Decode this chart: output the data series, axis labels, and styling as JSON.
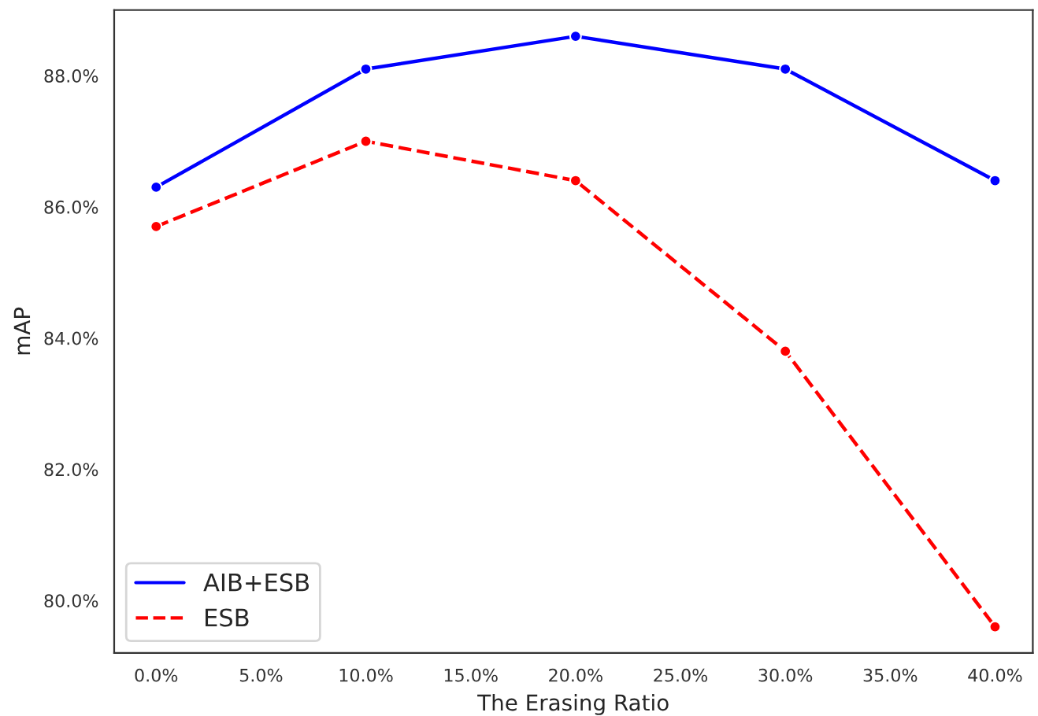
{
  "chart_data": {
    "type": "line",
    "xlabel": "The Erasing Ratio",
    "ylabel": "mAP",
    "x": [
      0,
      10,
      20,
      30,
      40
    ],
    "series": [
      {
        "name": "AIB+ESB",
        "color": "#0000ff",
        "values": [
          86.3,
          88.1,
          88.6,
          88.1,
          86.4
        ],
        "line_style": "solid"
      },
      {
        "name": "ESB",
        "color": "#ff0000",
        "values": [
          85.7,
          87.0,
          86.4,
          83.8,
          79.6
        ],
        "line_style": "dashed"
      }
    ],
    "xlim": [
      -2,
      41.8
    ],
    "ylim": [
      79.2,
      89.0
    ],
    "xticks": [
      {
        "value": 0,
        "label": "0.0%"
      },
      {
        "value": 5,
        "label": "5.0%"
      },
      {
        "value": 10,
        "label": "10.0%"
      },
      {
        "value": 15,
        "label": "15.0%"
      },
      {
        "value": 20,
        "label": "20.0%"
      },
      {
        "value": 25,
        "label": "25.0%"
      },
      {
        "value": 30,
        "label": "30.0%"
      },
      {
        "value": 35,
        "label": "35.0%"
      },
      {
        "value": 40,
        "label": "40.0%"
      }
    ],
    "yticks": [
      {
        "value": 80,
        "label": "80.0%"
      },
      {
        "value": 82,
        "label": "82.0%"
      },
      {
        "value": 84,
        "label": "84.0%"
      },
      {
        "value": 86,
        "label": "86.0%"
      },
      {
        "value": 88,
        "label": "88.0%"
      }
    ],
    "marker": "circle",
    "grid": false,
    "legend": "bottom left"
  }
}
